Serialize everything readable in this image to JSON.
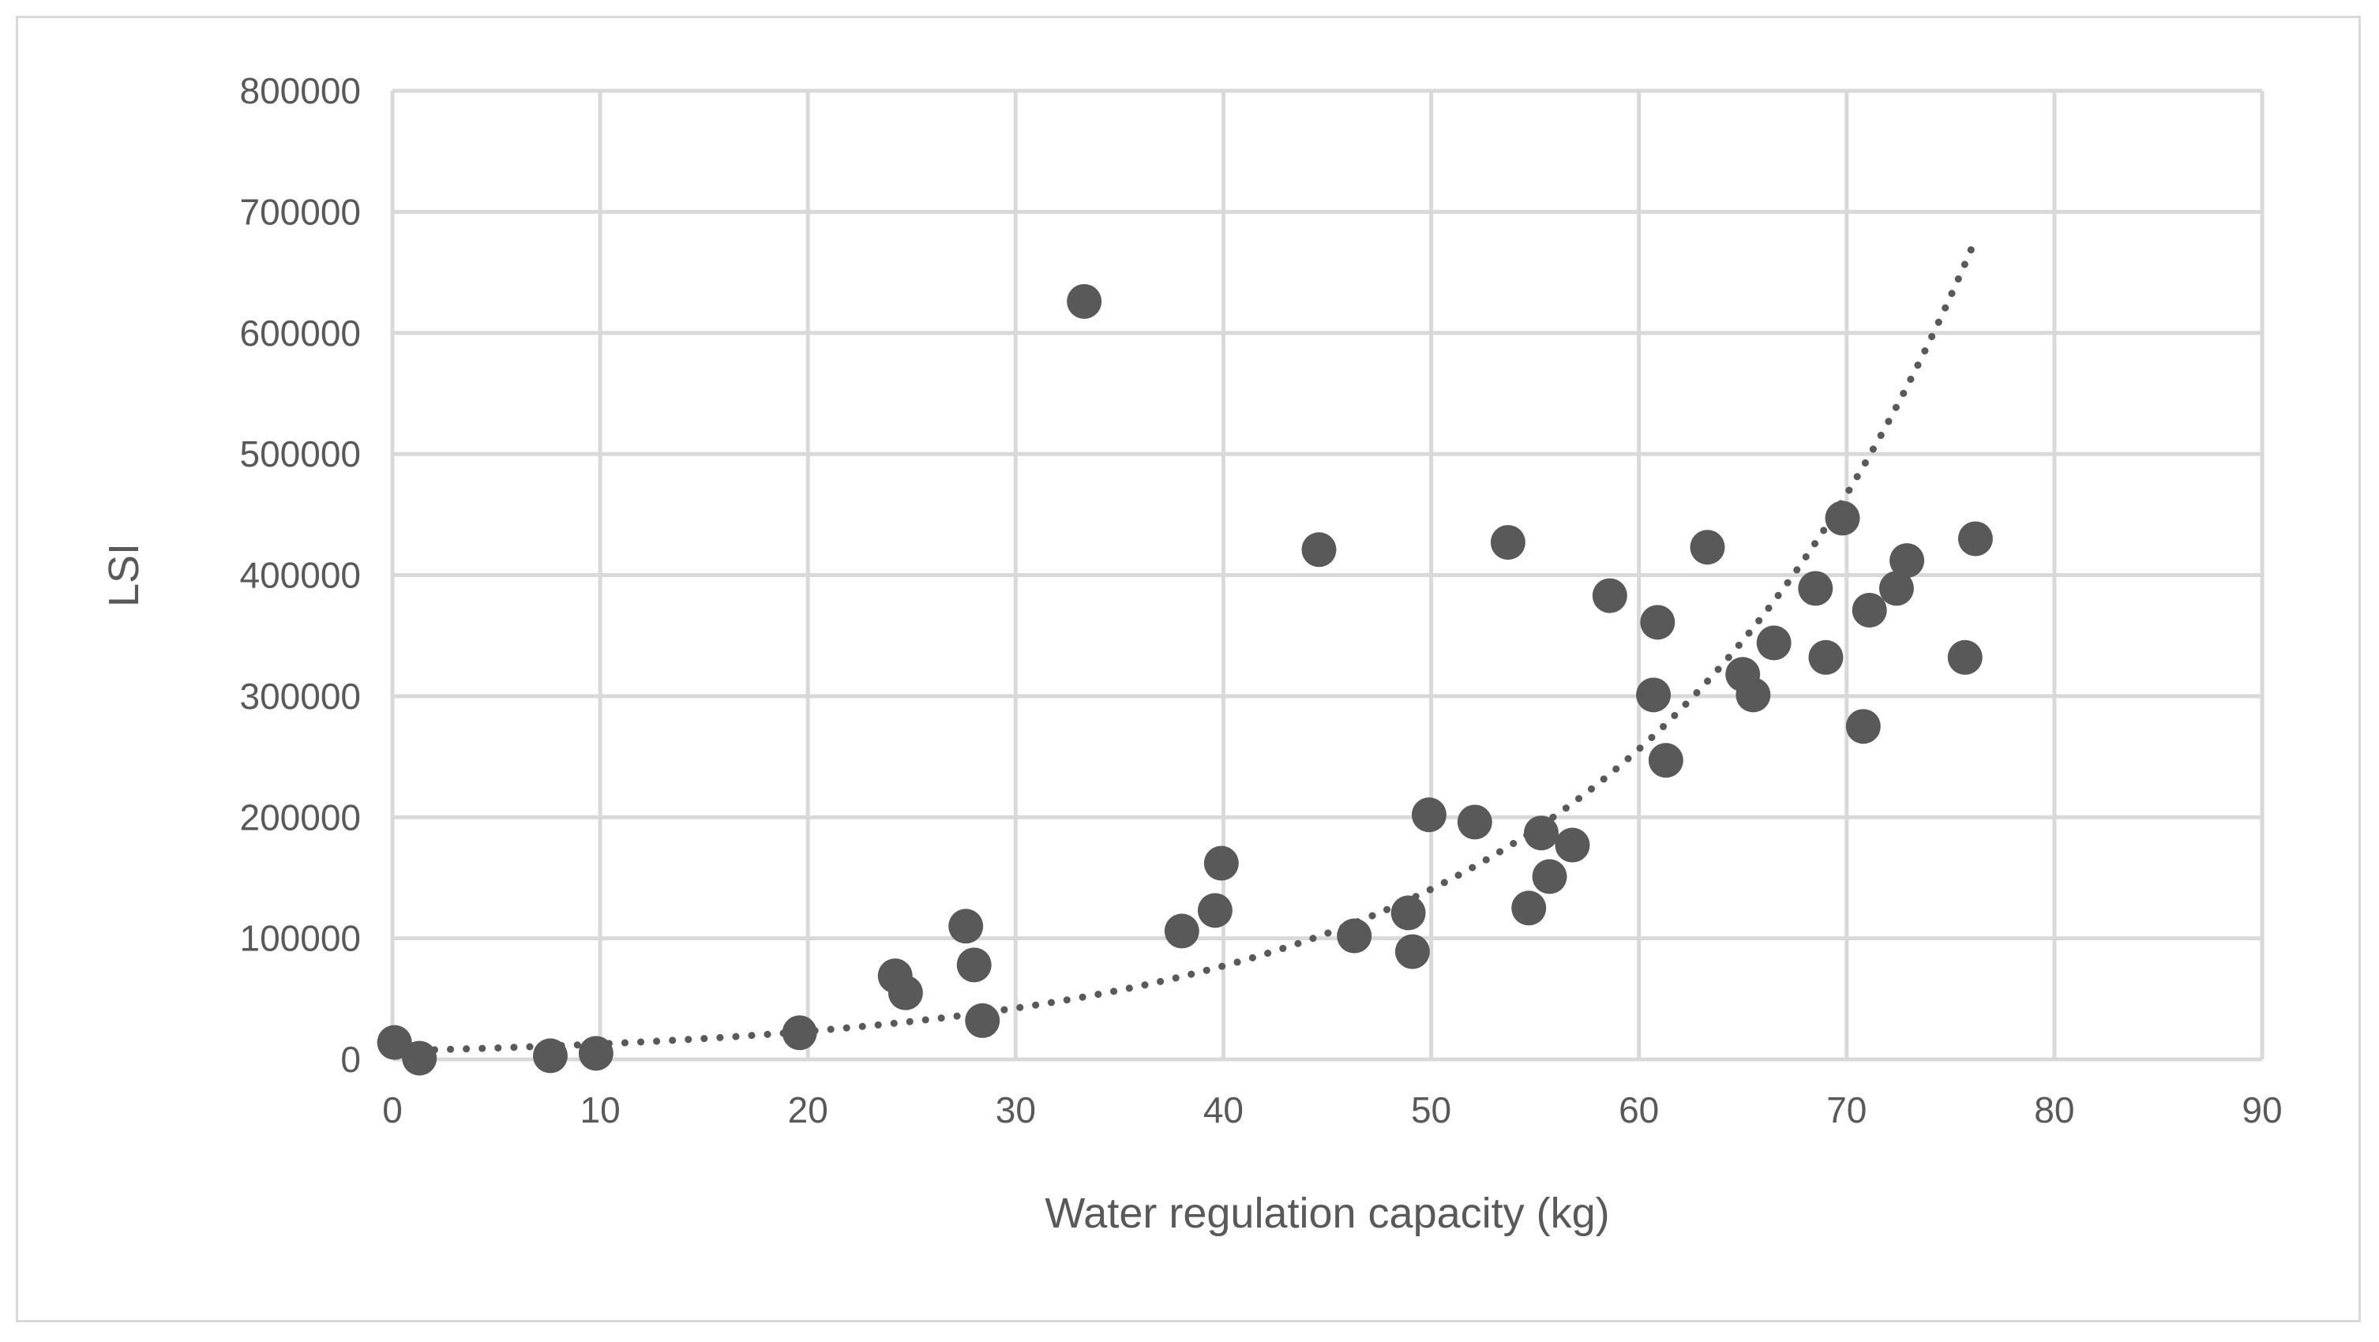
{
  "chart_data": {
    "type": "scatter",
    "title": "",
    "xlabel": "Water regulation capacity (kg)",
    "ylabel": "LSI",
    "xlim": [
      0,
      90
    ],
    "ylim": [
      0,
      800000
    ],
    "x_ticks": [
      "0",
      "10",
      "20",
      "30",
      "40",
      "50",
      "60",
      "70",
      "80",
      "90"
    ],
    "y_ticks": [
      "0",
      "100000",
      "200000",
      "300000",
      "400000",
      "500000",
      "600000",
      "700000",
      "800000"
    ],
    "grid": true,
    "legend": "none",
    "series": [
      {
        "name": "LSI",
        "marker": "circle",
        "color": "#595959",
        "points": [
          {
            "x": 0.1,
            "y": 14000
          },
          {
            "x": 1.3,
            "y": 1000
          },
          {
            "x": 7.6,
            "y": 3000
          },
          {
            "x": 9.8,
            "y": 5000
          },
          {
            "x": 19.6,
            "y": 22000
          },
          {
            "x": 24.2,
            "y": 69000
          },
          {
            "x": 24.7,
            "y": 55000
          },
          {
            "x": 27.6,
            "y": 110000
          },
          {
            "x": 28.0,
            "y": 78000
          },
          {
            "x": 28.4,
            "y": 32000
          },
          {
            "x": 33.3,
            "y": 626000
          },
          {
            "x": 38.0,
            "y": 106000
          },
          {
            "x": 39.6,
            "y": 123000
          },
          {
            "x": 39.9,
            "y": 162000
          },
          {
            "x": 44.6,
            "y": 421000
          },
          {
            "x": 46.3,
            "y": 102000
          },
          {
            "x": 48.9,
            "y": 121000
          },
          {
            "x": 49.1,
            "y": 89000
          },
          {
            "x": 49.9,
            "y": 202000
          },
          {
            "x": 52.1,
            "y": 196000
          },
          {
            "x": 53.7,
            "y": 427000
          },
          {
            "x": 54.7,
            "y": 125000
          },
          {
            "x": 55.3,
            "y": 187000
          },
          {
            "x": 55.7,
            "y": 151000
          },
          {
            "x": 56.8,
            "y": 177000
          },
          {
            "x": 58.6,
            "y": 383000
          },
          {
            "x": 60.7,
            "y": 301000
          },
          {
            "x": 60.9,
            "y": 361000
          },
          {
            "x": 61.3,
            "y": 247000
          },
          {
            "x": 63.3,
            "y": 423000
          },
          {
            "x": 65.0,
            "y": 318000
          },
          {
            "x": 65.5,
            "y": 301000
          },
          {
            "x": 66.5,
            "y": 344000
          },
          {
            "x": 68.5,
            "y": 389000
          },
          {
            "x": 69.0,
            "y": 332000
          },
          {
            "x": 69.8,
            "y": 447000
          },
          {
            "x": 70.8,
            "y": 275000
          },
          {
            "x": 71.1,
            "y": 371000
          },
          {
            "x": 72.4,
            "y": 389000
          },
          {
            "x": 72.9,
            "y": 412000
          },
          {
            "x": 75.7,
            "y": 332000
          },
          {
            "x": 76.2,
            "y": 430000
          }
        ]
      }
    ],
    "trendline": {
      "type": "exponential",
      "style": "dotted",
      "color": "#595959",
      "x_range": [
        0.5,
        76.2
      ],
      "a": 7000,
      "b": 0.06
    }
  }
}
